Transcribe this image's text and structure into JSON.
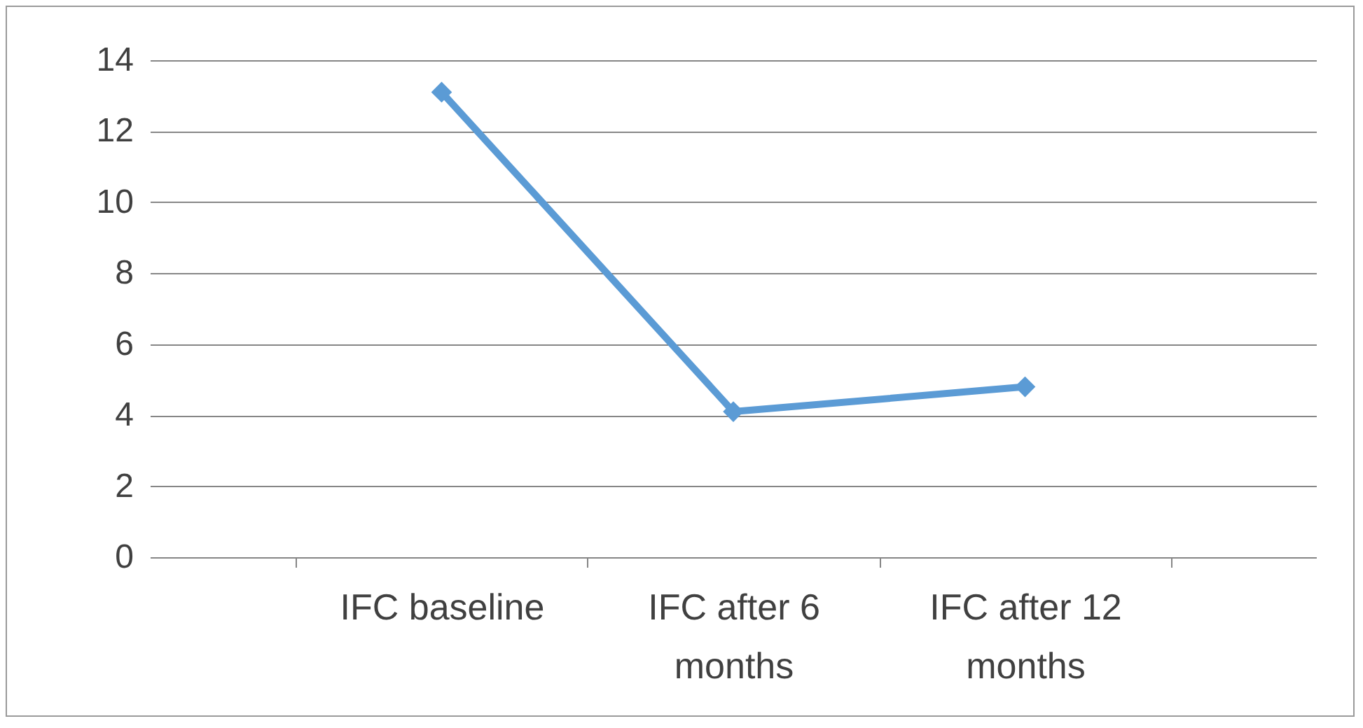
{
  "chart_data": {
    "type": "line",
    "categories": [
      "IFC baseline",
      "IFC after 6 months",
      "IFC after 12 months"
    ],
    "series": [
      {
        "color": "#5b9bd5",
        "values": [
          13.1,
          4.1,
          4.8
        ]
      }
    ],
    "ylim": [
      0,
      14
    ],
    "yticks": [
      0,
      2,
      4,
      6,
      8,
      10,
      12,
      14
    ],
    "grid": "y",
    "marker": "diamond",
    "line_style": "solid"
  }
}
